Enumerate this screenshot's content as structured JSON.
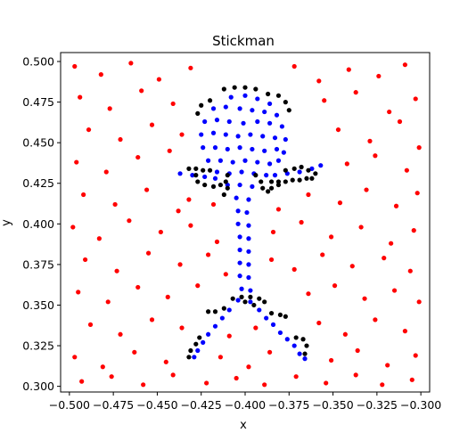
{
  "chart_data": {
    "type": "scatter",
    "title": "Stickman",
    "xlabel": "x",
    "ylabel": "y",
    "xlim": [
      -0.505,
      -0.295
    ],
    "ylim": [
      0.2965,
      0.5055
    ],
    "xticks": [
      -0.5,
      -0.475,
      -0.45,
      -0.425,
      -0.4,
      -0.375,
      -0.35,
      -0.325,
      -0.3
    ],
    "xtick_labels": [
      "−0.500",
      "−0.475",
      "−0.450",
      "−0.425",
      "−0.400",
      "−0.375",
      "−0.350",
      "−0.325",
      "−0.300"
    ],
    "yticks": [
      0.3,
      0.325,
      0.35,
      0.375,
      0.4,
      0.425,
      0.45,
      0.475,
      0.5
    ],
    "ytick_labels": [
      "0.300",
      "0.325",
      "0.350",
      "0.375",
      "0.400",
      "0.425",
      "0.450",
      "0.475",
      "0.500"
    ],
    "grid": false,
    "legend": "none",
    "series": [
      {
        "color": "#ff0000",
        "region": "background",
        "points": [
          [
            -0.497,
            0.497
          ],
          [
            -0.482,
            0.492
          ],
          [
            -0.465,
            0.499
          ],
          [
            -0.449,
            0.489
          ],
          [
            -0.431,
            0.496
          ],
          [
            -0.372,
            0.497
          ],
          [
            -0.358,
            0.488
          ],
          [
            -0.341,
            0.495
          ],
          [
            -0.324,
            0.491
          ],
          [
            -0.309,
            0.498
          ],
          [
            -0.494,
            0.478
          ],
          [
            -0.477,
            0.471
          ],
          [
            -0.459,
            0.482
          ],
          [
            -0.441,
            0.474
          ],
          [
            -0.355,
            0.476
          ],
          [
            -0.337,
            0.481
          ],
          [
            -0.318,
            0.469
          ],
          [
            -0.303,
            0.477
          ],
          [
            -0.489,
            0.458
          ],
          [
            -0.471,
            0.452
          ],
          [
            -0.453,
            0.461
          ],
          [
            -0.436,
            0.455
          ],
          [
            -0.347,
            0.458
          ],
          [
            -0.329,
            0.451
          ],
          [
            -0.312,
            0.463
          ],
          [
            -0.301,
            0.447
          ],
          [
            -0.496,
            0.438
          ],
          [
            -0.479,
            0.432
          ],
          [
            -0.461,
            0.441
          ],
          [
            -0.443,
            0.445
          ],
          [
            -0.342,
            0.437
          ],
          [
            -0.326,
            0.442
          ],
          [
            -0.308,
            0.433
          ],
          [
            -0.492,
            0.418
          ],
          [
            -0.474,
            0.412
          ],
          [
            -0.456,
            0.421
          ],
          [
            -0.438,
            0.408
          ],
          [
            -0.432,
            0.415
          ],
          [
            -0.418,
            0.412
          ],
          [
            -0.381,
            0.409
          ],
          [
            -0.364,
            0.418
          ],
          [
            -0.346,
            0.413
          ],
          [
            -0.331,
            0.421
          ],
          [
            -0.314,
            0.411
          ],
          [
            -0.302,
            0.419
          ],
          [
            -0.498,
            0.398
          ],
          [
            -0.483,
            0.391
          ],
          [
            -0.466,
            0.402
          ],
          [
            -0.448,
            0.395
          ],
          [
            -0.431,
            0.399
          ],
          [
            -0.416,
            0.389
          ],
          [
            -0.384,
            0.395
          ],
          [
            -0.368,
            0.401
          ],
          [
            -0.351,
            0.392
          ],
          [
            -0.334,
            0.398
          ],
          [
            -0.317,
            0.388
          ],
          [
            -0.304,
            0.396
          ],
          [
            -0.491,
            0.378
          ],
          [
            -0.473,
            0.371
          ],
          [
            -0.455,
            0.382
          ],
          [
            -0.437,
            0.375
          ],
          [
            -0.421,
            0.381
          ],
          [
            -0.411,
            0.369
          ],
          [
            -0.385,
            0.378
          ],
          [
            -0.372,
            0.372
          ],
          [
            -0.356,
            0.381
          ],
          [
            -0.339,
            0.374
          ],
          [
            -0.321,
            0.379
          ],
          [
            -0.306,
            0.371
          ],
          [
            -0.495,
            0.358
          ],
          [
            -0.478,
            0.352
          ],
          [
            -0.461,
            0.361
          ],
          [
            -0.444,
            0.355
          ],
          [
            -0.427,
            0.362
          ],
          [
            -0.364,
            0.357
          ],
          [
            -0.349,
            0.362
          ],
          [
            -0.332,
            0.354
          ],
          [
            -0.315,
            0.359
          ],
          [
            -0.301,
            0.352
          ],
          [
            -0.488,
            0.338
          ],
          [
            -0.471,
            0.332
          ],
          [
            -0.453,
            0.341
          ],
          [
            -0.436,
            0.336
          ],
          [
            -0.409,
            0.331
          ],
          [
            -0.394,
            0.336
          ],
          [
            -0.358,
            0.339
          ],
          [
            -0.343,
            0.332
          ],
          [
            -0.326,
            0.341
          ],
          [
            -0.309,
            0.334
          ],
          [
            -0.497,
            0.318
          ],
          [
            -0.481,
            0.312
          ],
          [
            -0.463,
            0.321
          ],
          [
            -0.445,
            0.315
          ],
          [
            -0.414,
            0.318
          ],
          [
            -0.398,
            0.312
          ],
          [
            -0.386,
            0.321
          ],
          [
            -0.351,
            0.316
          ],
          [
            -0.336,
            0.322
          ],
          [
            -0.319,
            0.313
          ],
          [
            -0.303,
            0.319
          ],
          [
            -0.493,
            0.303
          ],
          [
            -0.476,
            0.306
          ],
          [
            -0.458,
            0.301
          ],
          [
            -0.441,
            0.307
          ],
          [
            -0.422,
            0.302
          ],
          [
            -0.405,
            0.305
          ],
          [
            -0.389,
            0.301
          ],
          [
            -0.371,
            0.306
          ],
          [
            -0.354,
            0.302
          ],
          [
            -0.337,
            0.307
          ],
          [
            -0.322,
            0.301
          ],
          [
            -0.305,
            0.304
          ]
        ]
      },
      {
        "color": "#0000ff",
        "region": "figure",
        "points": [
          [
            -0.408,
            0.478
          ],
          [
            -0.4,
            0.479
          ],
          [
            -0.393,
            0.477
          ],
          [
            -0.386,
            0.474
          ],
          [
            -0.418,
            0.471
          ],
          [
            -0.411,
            0.472
          ],
          [
            -0.403,
            0.471
          ],
          [
            -0.396,
            0.47
          ],
          [
            -0.389,
            0.469
          ],
          [
            -0.382,
            0.467
          ],
          [
            -0.423,
            0.463
          ],
          [
            -0.416,
            0.464
          ],
          [
            -0.409,
            0.463
          ],
          [
            -0.401,
            0.462
          ],
          [
            -0.393,
            0.463
          ],
          [
            -0.386,
            0.462
          ],
          [
            -0.379,
            0.46
          ],
          [
            -0.425,
            0.455
          ],
          [
            -0.418,
            0.456
          ],
          [
            -0.411,
            0.455
          ],
          [
            -0.404,
            0.454
          ],
          [
            -0.397,
            0.455
          ],
          [
            -0.39,
            0.454
          ],
          [
            -0.383,
            0.453
          ],
          [
            -0.377,
            0.452
          ],
          [
            -0.424,
            0.447
          ],
          [
            -0.417,
            0.447
          ],
          [
            -0.41,
            0.446
          ],
          [
            -0.403,
            0.447
          ],
          [
            -0.396,
            0.446
          ],
          [
            -0.389,
            0.445
          ],
          [
            -0.382,
            0.446
          ],
          [
            -0.378,
            0.444
          ],
          [
            -0.421,
            0.439
          ],
          [
            -0.414,
            0.439
          ],
          [
            -0.407,
            0.438
          ],
          [
            -0.4,
            0.439
          ],
          [
            -0.393,
            0.438
          ],
          [
            -0.386,
            0.437
          ],
          [
            -0.381,
            0.439
          ],
          [
            -0.416,
            0.432
          ],
          [
            -0.409,
            0.431
          ],
          [
            -0.402,
            0.432
          ],
          [
            -0.395,
            0.431
          ],
          [
            -0.388,
            0.43
          ],
          [
            -0.437,
            0.431
          ],
          [
            -0.43,
            0.43
          ],
          [
            -0.423,
            0.429
          ],
          [
            -0.417,
            0.428
          ],
          [
            -0.383,
            0.43
          ],
          [
            -0.376,
            0.431
          ],
          [
            -0.369,
            0.432
          ],
          [
            -0.362,
            0.434
          ],
          [
            -0.357,
            0.436
          ],
          [
            -0.41,
            0.424
          ],
          [
            -0.403,
            0.424
          ],
          [
            -0.396,
            0.423
          ],
          [
            -0.405,
            0.416
          ],
          [
            -0.398,
            0.415
          ],
          [
            -0.404,
            0.408
          ],
          [
            -0.399,
            0.407
          ],
          [
            -0.404,
            0.4
          ],
          [
            -0.398,
            0.399
          ],
          [
            -0.403,
            0.392
          ],
          [
            -0.398,
            0.391
          ],
          [
            -0.403,
            0.384
          ],
          [
            -0.398,
            0.383
          ],
          [
            -0.403,
            0.376
          ],
          [
            -0.398,
            0.375
          ],
          [
            -0.403,
            0.368
          ],
          [
            -0.398,
            0.367
          ],
          [
            -0.402,
            0.36
          ],
          [
            -0.397,
            0.359
          ],
          [
            -0.404,
            0.353
          ],
          [
            -0.397,
            0.352
          ],
          [
            -0.409,
            0.347
          ],
          [
            -0.413,
            0.342
          ],
          [
            -0.417,
            0.337
          ],
          [
            -0.421,
            0.332
          ],
          [
            -0.424,
            0.327
          ],
          [
            -0.427,
            0.322
          ],
          [
            -0.429,
            0.318
          ],
          [
            -0.392,
            0.347
          ],
          [
            -0.388,
            0.342
          ],
          [
            -0.384,
            0.338
          ],
          [
            -0.38,
            0.333
          ],
          [
            -0.376,
            0.329
          ],
          [
            -0.372,
            0.325
          ],
          [
            -0.369,
            0.32
          ],
          [
            -0.366,
            0.317
          ]
        ]
      },
      {
        "color": "#000000",
        "region": "outline",
        "points": [
          [
            -0.412,
            0.483
          ],
          [
            -0.406,
            0.484
          ],
          [
            -0.4,
            0.484
          ],
          [
            -0.394,
            0.483
          ],
          [
            -0.387,
            0.48
          ],
          [
            -0.381,
            0.479
          ],
          [
            -0.377,
            0.475
          ],
          [
            -0.375,
            0.47
          ],
          [
            -0.42,
            0.476
          ],
          [
            -0.425,
            0.473
          ],
          [
            -0.427,
            0.468
          ],
          [
            -0.432,
            0.434
          ],
          [
            -0.428,
            0.434
          ],
          [
            -0.424,
            0.433
          ],
          [
            -0.42,
            0.433
          ],
          [
            -0.428,
            0.43
          ],
          [
            -0.427,
            0.426
          ],
          [
            -0.423,
            0.424
          ],
          [
            -0.418,
            0.423
          ],
          [
            -0.414,
            0.424
          ],
          [
            -0.411,
            0.426
          ],
          [
            -0.41,
            0.43
          ],
          [
            -0.41,
            0.422
          ],
          [
            -0.412,
            0.418
          ],
          [
            -0.394,
            0.43
          ],
          [
            -0.391,
            0.426
          ],
          [
            -0.39,
            0.422
          ],
          [
            -0.387,
            0.42
          ],
          [
            -0.385,
            0.426
          ],
          [
            -0.381,
            0.426
          ],
          [
            -0.377,
            0.426
          ],
          [
            -0.373,
            0.427
          ],
          [
            -0.369,
            0.427
          ],
          [
            -0.365,
            0.428
          ],
          [
            -0.362,
            0.428
          ],
          [
            -0.377,
            0.433
          ],
          [
            -0.372,
            0.434
          ],
          [
            -0.368,
            0.435
          ],
          [
            -0.364,
            0.433
          ],
          [
            -0.36,
            0.431
          ],
          [
            -0.381,
            0.424
          ],
          [
            -0.385,
            0.422
          ],
          [
            -0.407,
            0.354
          ],
          [
            -0.402,
            0.355
          ],
          [
            -0.397,
            0.355
          ],
          [
            -0.392,
            0.354
          ],
          [
            -0.389,
            0.352
          ],
          [
            -0.395,
            0.35
          ],
          [
            -0.4,
            0.352
          ],
          [
            -0.412,
            0.348
          ],
          [
            -0.417,
            0.346
          ],
          [
            -0.421,
            0.346
          ],
          [
            -0.385,
            0.345
          ],
          [
            -0.38,
            0.344
          ],
          [
            -0.377,
            0.343
          ],
          [
            -0.426,
            0.33
          ],
          [
            -0.428,
            0.326
          ],
          [
            -0.431,
            0.322
          ],
          [
            -0.432,
            0.318
          ],
          [
            -0.371,
            0.33
          ],
          [
            -0.367,
            0.329
          ],
          [
            -0.365,
            0.325
          ],
          [
            -0.366,
            0.32
          ]
        ]
      }
    ]
  }
}
